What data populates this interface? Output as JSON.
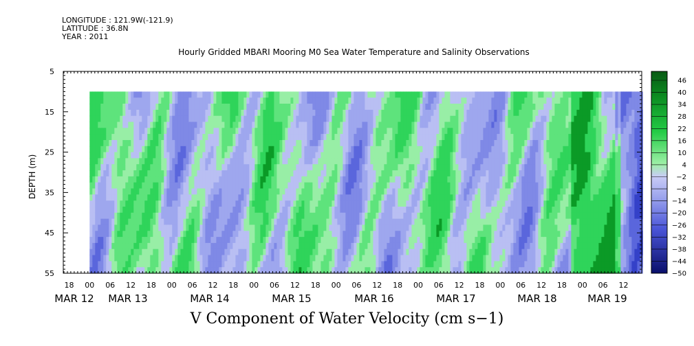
{
  "header": {
    "longitude": "LONGITUDE : 121.9W(-121.9)",
    "latitude": "LATITUDE : 36.8N",
    "year": "YEAR : 2011"
  },
  "chart_data": {
    "type": "heatmap",
    "title": "Hourly Gridded MBARI Mooring M0 Sea Water Temperature and Salinity Observations",
    "variable_title": "V Component of Water Velocity (cm s−1)",
    "ylabel": "DEPTH (m)",
    "ylim": [
      55,
      5
    ],
    "y_ticks": [
      5,
      15,
      25,
      35,
      45,
      55
    ],
    "x_hour_labels": [
      "18",
      "00",
      "06",
      "12",
      "18",
      "00",
      "06",
      "12",
      "18",
      "00",
      "06",
      "12",
      "18",
      "00",
      "06",
      "12",
      "18",
      "00",
      "06",
      "12",
      "18",
      "00",
      "06",
      "12",
      "18",
      "00",
      "06",
      "12"
    ],
    "x_day_labels": [
      "MAR 12",
      "MAR 13",
      "MAR 14",
      "MAR 15",
      "MAR 16",
      "MAR 17",
      "MAR 18",
      "MAR 19"
    ],
    "data_depth_range": [
      10,
      55
    ],
    "data_time_start": "MAR 13 00",
    "data_time_end": "MAR 19 18",
    "colorbar": {
      "labels": [
        "46",
        "40",
        "34",
        "28",
        "22",
        "16",
        "10",
        "4",
        "−2",
        "−8",
        "−14",
        "−20",
        "−26",
        "−32",
        "−38",
        "−44",
        "−50"
      ],
      "range": [
        -50,
        52
      ]
    },
    "colors": {
      "strong_positive": "#0a5a14",
      "positive": "#3fd86a",
      "light_positive": "#9ff0a8",
      "light_negative": "#b3b8f2",
      "negative": "#8f98ea",
      "strong_negative": "#1e2a9c"
    }
  }
}
